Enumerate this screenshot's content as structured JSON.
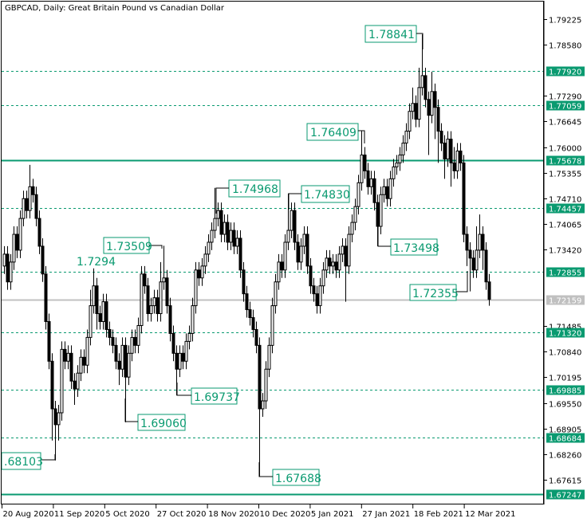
{
  "header": {
    "title": "GBPCAD, Daily:  Great Britain Pound vs Canadian Dollar"
  },
  "colors": {
    "level_line": "#0a9a70",
    "level_label_bg": "#0a9a70",
    "bid_line": "#c0c0c0",
    "bull_fill": "#ffffff",
    "bear_fill": "#000000",
    "annotation": "#0a9a70"
  },
  "chart_data": {
    "type": "candlestick",
    "title": "GBPCAD, Daily:  Great Britain Pound vs Canadian Dollar",
    "ylim": [
      1.67,
      1.7965
    ],
    "y_ticks": [
      "1.79225",
      "1.78580",
      "1.77290",
      "1.76645",
      "1.76000",
      "1.75355",
      "1.74710",
      "1.74065",
      "1.73420",
      "1.71485",
      "1.70840",
      "1.70195",
      "1.69550",
      "1.68905",
      "1.68260",
      "1.67615"
    ],
    "x_ticks": [
      "20 Aug 2020",
      "11 Sep 2020",
      "5 Oct 2020",
      "27 Oct 2020",
      "18 Nov 2020",
      "10 Dec 2020",
      "5 Jan 2021",
      "27 Jan 2021",
      "18 Feb 2021",
      "12 Mar 2021"
    ],
    "levels": [
      {
        "price": "1.77920",
        "style": "dashed"
      },
      {
        "price": "1.77059",
        "style": "dashed"
      },
      {
        "price": "1.75678",
        "style": "solid"
      },
      {
        "price": "1.74457",
        "style": "dashed"
      },
      {
        "price": "1.72855",
        "style": "dashed"
      },
      {
        "price": "1.71320",
        "style": "dashed"
      },
      {
        "price": "1.69885",
        "style": "dashed"
      },
      {
        "price": "1.68684",
        "style": "dashed"
      },
      {
        "price": "1.67247",
        "style": "solid"
      }
    ],
    "bid": "1.72159",
    "annotations": [
      "1.78841",
      "1.76409",
      "1.74968",
      "1.74830",
      "1.73509",
      "1.7294",
      "1.73498",
      "1.72355",
      "1.69737",
      "1.69060",
      "1.67688",
      ".68103"
    ],
    "ohlc": [
      [
        1.73,
        1.735,
        1.728,
        1.733
      ],
      [
        1.733,
        1.735,
        1.724,
        1.726
      ],
      [
        1.726,
        1.733,
        1.724,
        1.731
      ],
      [
        1.731,
        1.74,
        1.729,
        1.738
      ],
      [
        1.738,
        1.74,
        1.732,
        1.734
      ],
      [
        1.734,
        1.744,
        1.732,
        1.742
      ],
      [
        1.742,
        1.749,
        1.74,
        1.747
      ],
      [
        1.747,
        1.749,
        1.742,
        1.744
      ],
      [
        1.744,
        1.7555,
        1.742,
        1.75
      ],
      [
        1.75,
        1.752,
        1.746,
        1.748
      ],
      [
        1.748,
        1.75,
        1.74,
        1.742
      ],
      [
        1.742,
        1.744,
        1.733,
        1.735
      ],
      [
        1.735,
        1.737,
        1.726,
        1.728
      ],
      [
        1.728,
        1.73,
        1.714,
        1.716
      ],
      [
        1.716,
        1.718,
        1.704,
        1.706
      ],
      [
        1.706,
        1.708,
        1.686,
        1.694
      ],
      [
        1.694,
        1.696,
        1.681,
        1.69
      ],
      [
        1.69,
        1.695,
        1.686,
        1.693
      ],
      [
        1.693,
        1.711,
        1.691,
        1.709
      ],
      [
        1.709,
        1.711,
        1.704,
        1.706
      ],
      [
        1.706,
        1.71,
        1.704,
        1.708
      ],
      [
        1.708,
        1.71,
        1.699,
        1.701
      ],
      [
        1.701,
        1.703,
        1.695,
        1.699
      ],
      [
        1.699,
        1.705,
        1.697,
        1.703
      ],
      [
        1.703,
        1.709,
        1.701,
        1.707
      ],
      [
        1.707,
        1.709,
        1.703,
        1.705
      ],
      [
        1.705,
        1.714,
        1.703,
        1.712
      ],
      [
        1.712,
        1.724,
        1.71,
        1.72
      ],
      [
        1.72,
        1.7294,
        1.718,
        1.725
      ],
      [
        1.725,
        1.727,
        1.714,
        1.718
      ],
      [
        1.718,
        1.72,
        1.714,
        1.716
      ],
      [
        1.716,
        1.723,
        1.714,
        1.721
      ],
      [
        1.721,
        1.723,
        1.712,
        1.714
      ],
      [
        1.714,
        1.716,
        1.71,
        1.712
      ],
      [
        1.712,
        1.714,
        1.708,
        1.71
      ],
      [
        1.71,
        1.712,
        1.704,
        1.706
      ],
      [
        1.706,
        1.708,
        1.7,
        1.704
      ],
      [
        1.704,
        1.712,
        1.702,
        1.71
      ],
      [
        1.71,
        1.712,
        1.6906,
        1.702
      ],
      [
        1.702,
        1.71,
        1.7,
        1.708
      ],
      [
        1.708,
        1.714,
        1.706,
        1.712
      ],
      [
        1.712,
        1.714,
        1.708,
        1.71
      ],
      [
        1.71,
        1.717,
        1.708,
        1.715
      ],
      [
        1.715,
        1.73,
        1.713,
        1.728
      ],
      [
        1.728,
        1.73,
        1.723,
        1.725
      ],
      [
        1.725,
        1.727,
        1.716,
        1.718
      ],
      [
        1.718,
        1.722,
        1.716,
        1.72
      ],
      [
        1.72,
        1.724,
        1.718,
        1.722
      ],
      [
        1.722,
        1.724,
        1.716,
        1.718
      ],
      [
        1.718,
        1.731,
        1.716,
        1.726
      ],
      [
        1.726,
        1.7351,
        1.724,
        1.727
      ],
      [
        1.727,
        1.729,
        1.718,
        1.72
      ],
      [
        1.72,
        1.722,
        1.711,
        1.713
      ],
      [
        1.713,
        1.715,
        1.706,
        1.708
      ],
      [
        1.708,
        1.71,
        1.6974,
        1.704
      ],
      [
        1.704,
        1.71,
        1.702,
        1.708
      ],
      [
        1.708,
        1.71,
        1.704,
        1.706
      ],
      [
        1.706,
        1.713,
        1.704,
        1.711
      ],
      [
        1.711,
        1.715,
        1.709,
        1.713
      ],
      [
        1.713,
        1.722,
        1.711,
        1.72
      ],
      [
        1.72,
        1.731,
        1.718,
        1.729
      ],
      [
        1.729,
        1.731,
        1.725,
        1.727
      ],
      [
        1.727,
        1.732,
        1.725,
        1.73
      ],
      [
        1.73,
        1.735,
        1.728,
        1.733
      ],
      [
        1.733,
        1.738,
        1.731,
        1.736
      ],
      [
        1.736,
        1.741,
        1.734,
        1.739
      ],
      [
        1.739,
        1.7497,
        1.737,
        1.742
      ],
      [
        1.742,
        1.746,
        1.74,
        1.744
      ],
      [
        1.744,
        1.746,
        1.736,
        1.738
      ],
      [
        1.738,
        1.743,
        1.736,
        1.741
      ],
      [
        1.741,
        1.743,
        1.734,
        1.736
      ],
      [
        1.736,
        1.741,
        1.734,
        1.739
      ],
      [
        1.739,
        1.741,
        1.733,
        1.735
      ],
      [
        1.735,
        1.739,
        1.733,
        1.737
      ],
      [
        1.737,
        1.739,
        1.727,
        1.729
      ],
      [
        1.729,
        1.731,
        1.721,
        1.723
      ],
      [
        1.723,
        1.725,
        1.717,
        1.719
      ],
      [
        1.719,
        1.721,
        1.715,
        1.717
      ],
      [
        1.717,
        1.719,
        1.712,
        1.714
      ],
      [
        1.714,
        1.716,
        1.708,
        1.71
      ],
      [
        1.71,
        1.712,
        1.6769,
        1.694
      ],
      [
        1.694,
        1.698,
        1.692,
        1.696
      ],
      [
        1.696,
        1.706,
        1.694,
        1.704
      ],
      [
        1.704,
        1.712,
        1.702,
        1.71
      ],
      [
        1.71,
        1.722,
        1.708,
        1.72
      ],
      [
        1.72,
        1.728,
        1.718,
        1.726
      ],
      [
        1.726,
        1.733,
        1.724,
        1.731
      ],
      [
        1.731,
        1.733,
        1.727,
        1.729
      ],
      [
        1.729,
        1.738,
        1.727,
        1.736
      ],
      [
        1.736,
        1.7483,
        1.734,
        1.739
      ],
      [
        1.739,
        1.746,
        1.737,
        1.744
      ],
      [
        1.744,
        1.746,
        1.734,
        1.736
      ],
      [
        1.736,
        1.738,
        1.729,
        1.731
      ],
      [
        1.731,
        1.737,
        1.729,
        1.735
      ],
      [
        1.735,
        1.74,
        1.733,
        1.738
      ],
      [
        1.738,
        1.74,
        1.728,
        1.73
      ],
      [
        1.73,
        1.732,
        1.723,
        1.725
      ],
      [
        1.725,
        1.727,
        1.721,
        1.723
      ],
      [
        1.723,
        1.725,
        1.718,
        1.72
      ],
      [
        1.72,
        1.727,
        1.718,
        1.725
      ],
      [
        1.725,
        1.731,
        1.723,
        1.729
      ],
      [
        1.729,
        1.734,
        1.727,
        1.732
      ],
      [
        1.732,
        1.734,
        1.728,
        1.73
      ],
      [
        1.73,
        1.733,
        1.728,
        1.731
      ],
      [
        1.731,
        1.733,
        1.727,
        1.729
      ],
      [
        1.729,
        1.735,
        1.727,
        1.733
      ],
      [
        1.733,
        1.737,
        1.731,
        1.735
      ],
      [
        1.735,
        1.737,
        1.721,
        1.73
      ],
      [
        1.73,
        1.74,
        1.728,
        1.738
      ],
      [
        1.738,
        1.743,
        1.736,
        1.741
      ],
      [
        1.741,
        1.747,
        1.739,
        1.745
      ],
      [
        1.745,
        1.753,
        1.743,
        1.751
      ],
      [
        1.751,
        1.7641,
        1.749,
        1.758
      ],
      [
        1.758,
        1.76,
        1.752,
        1.754
      ],
      [
        1.754,
        1.756,
        1.748,
        1.75
      ],
      [
        1.75,
        1.754,
        1.748,
        1.752
      ],
      [
        1.752,
        1.754,
        1.744,
        1.746
      ],
      [
        1.746,
        1.748,
        1.735,
        1.74
      ],
      [
        1.74,
        1.75,
        1.738,
        1.748
      ],
      [
        1.748,
        1.752,
        1.746,
        1.75
      ],
      [
        1.75,
        1.752,
        1.745,
        1.747
      ],
      [
        1.747,
        1.754,
        1.745,
        1.752
      ],
      [
        1.752,
        1.757,
        1.75,
        1.755
      ],
      [
        1.755,
        1.758,
        1.753,
        1.756
      ],
      [
        1.756,
        1.76,
        1.754,
        1.758
      ],
      [
        1.758,
        1.763,
        1.756,
        1.761
      ],
      [
        1.761,
        1.766,
        1.759,
        1.764
      ],
      [
        1.764,
        1.771,
        1.762,
        1.769
      ],
      [
        1.769,
        1.775,
        1.767,
        1.771
      ],
      [
        1.771,
        1.773,
        1.765,
        1.767
      ],
      [
        1.767,
        1.78,
        1.765,
        1.775
      ],
      [
        1.775,
        1.7884,
        1.773,
        1.778
      ],
      [
        1.778,
        1.78,
        1.77,
        1.772
      ],
      [
        1.772,
        1.774,
        1.758,
        1.768
      ],
      [
        1.768,
        1.779,
        1.766,
        1.774
      ],
      [
        1.774,
        1.776,
        1.762,
        1.77
      ],
      [
        1.77,
        1.772,
        1.756,
        1.764
      ],
      [
        1.764,
        1.766,
        1.759,
        1.761
      ],
      [
        1.761,
        1.763,
        1.752,
        1.757
      ],
      [
        1.757,
        1.764,
        1.755,
        1.762
      ],
      [
        1.762,
        1.764,
        1.75,
        1.756
      ],
      [
        1.756,
        1.76,
        1.752,
        1.754
      ],
      [
        1.754,
        1.761,
        1.752,
        1.759
      ],
      [
        1.759,
        1.761,
        1.754,
        1.756
      ],
      [
        1.756,
        1.758,
        1.736,
        1.738
      ],
      [
        1.738,
        1.74,
        1.73,
        1.734
      ],
      [
        1.734,
        1.736,
        1.7236,
        1.732
      ],
      [
        1.732,
        1.734,
        1.727,
        1.729
      ],
      [
        1.729,
        1.74,
        1.727,
        1.734
      ],
      [
        1.734,
        1.743,
        1.732,
        1.738
      ],
      [
        1.738,
        1.74,
        1.729,
        1.734
      ],
      [
        1.734,
        1.736,
        1.724,
        1.726
      ],
      [
        1.726,
        1.728,
        1.72,
        1.7216
      ]
    ]
  }
}
